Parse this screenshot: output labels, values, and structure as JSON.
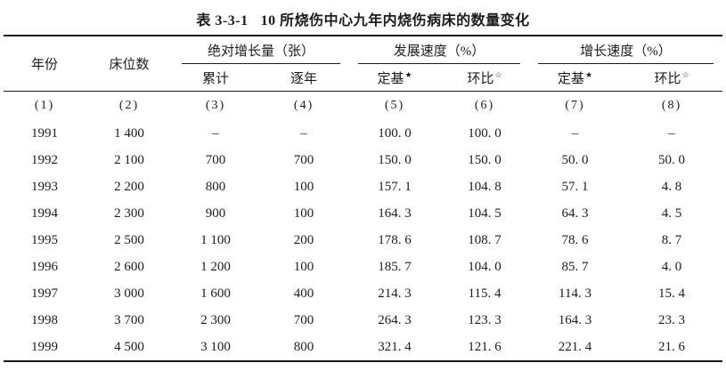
{
  "page": {
    "title_label": "表 3-3-1",
    "title_text": "10 所烧伤中心九年内烧伤病床的数量变化"
  },
  "header": {
    "year": "年份",
    "beds": "床位数",
    "group_absolute_growth": "绝对增长量（张）",
    "group_development_speed": "发展速度（%）",
    "group_growth_speed": "增长速度（%）"
  },
  "sub_columns": [
    {
      "label": "累计",
      "star": ""
    },
    {
      "label": "逐年",
      "star": ""
    },
    {
      "label": "定基",
      "star": "★"
    },
    {
      "label": "环比",
      "star": "☆"
    },
    {
      "label": "定基",
      "star": "★"
    },
    {
      "label": "环比",
      "star": "☆"
    }
  ],
  "col_numbers": [
    "(1)",
    "(2)",
    "(3)",
    "(4)",
    "(5)",
    "(6)",
    "(7)",
    "(8)"
  ],
  "rows": [
    [
      "1991",
      "1 400",
      "–",
      "–",
      "100. 0",
      "100. 0",
      "–",
      "–"
    ],
    [
      "1992",
      "2 100",
      "700",
      "700",
      "150. 0",
      "150. 0",
      "50. 0",
      "50. 0"
    ],
    [
      "1993",
      "2 200",
      "800",
      "100",
      "157. 1",
      "104. 8",
      "57. 1",
      "4. 8"
    ],
    [
      "1994",
      "2 300",
      "900",
      "100",
      "164. 3",
      "104. 5",
      "64. 3",
      "4. 5"
    ],
    [
      "1995",
      "2 500",
      "1 100",
      "200",
      "178. 6",
      "108. 7",
      "78. 6",
      "8. 7"
    ],
    [
      "1996",
      "2 600",
      "1 200",
      "100",
      "185. 7",
      "104. 0",
      "85. 7",
      "4. 0"
    ],
    [
      "1997",
      "3 000",
      "1 600",
      "400",
      "214. 3",
      "115. 4",
      "114. 3",
      "15. 4"
    ],
    [
      "1998",
      "3 700",
      "2 300",
      "700",
      "264. 3",
      "123. 3",
      "164. 3",
      "23. 3"
    ],
    [
      "1999",
      "4 500",
      "3 100",
      "800",
      "321. 4",
      "121. 6",
      "221. 4",
      "21. 6"
    ]
  ]
}
